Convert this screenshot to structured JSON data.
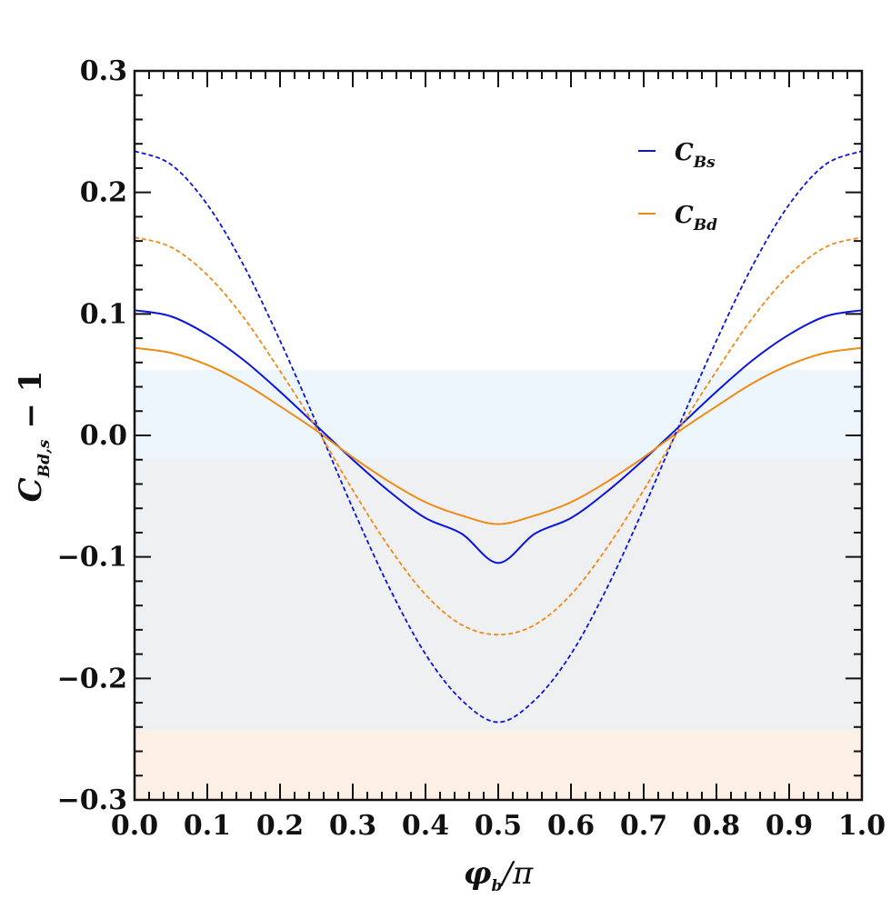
{
  "chart_data": {
    "type": "line",
    "xlabel": "φb/π",
    "ylabel": "CBd,s − 1",
    "xlim": [
      0.0,
      1.0
    ],
    "ylim": [
      -0.3,
      0.3
    ],
    "x_ticks": [
      "0.0",
      "0.1",
      "0.2",
      "0.3",
      "0.4",
      "0.5",
      "0.6",
      "0.7",
      "0.8",
      "0.9",
      "1.0"
    ],
    "y_ticks": [
      "0.3",
      "0.2",
      "0.1",
      "0.0",
      "−0.1",
      "−0.2",
      "−0.3"
    ],
    "y_tick_values": [
      0.3,
      0.2,
      0.1,
      0.0,
      -0.1,
      -0.2,
      -0.3
    ],
    "bands": [
      {
        "y0": -0.019,
        "y1": 0.054,
        "color": "#eef6fd"
      },
      {
        "y0": -0.243,
        "y1": -0.019,
        "color": "#eff0f2"
      },
      {
        "y0": -0.3,
        "y1": -0.243,
        "color": "#fdf0e5"
      }
    ],
    "x": [
      0.0,
      0.05,
      0.1,
      0.15,
      0.2,
      0.25,
      0.3,
      0.35,
      0.4,
      0.45,
      0.5,
      0.55,
      0.6,
      0.65,
      0.7,
      0.75,
      0.8,
      0.85,
      0.9,
      0.95,
      1.0
    ],
    "series": [
      {
        "name": "CBs",
        "style": "solid",
        "color": "#0a14e0",
        "values": [
          0.103,
          0.098,
          0.083,
          0.062,
          0.036,
          0.008,
          -0.02,
          -0.046,
          -0.068,
          -0.081,
          -0.105,
          -0.081,
          -0.068,
          -0.046,
          -0.02,
          0.008,
          0.036,
          0.062,
          0.083,
          0.098,
          0.103
        ]
      },
      {
        "name": "CBd",
        "style": "solid",
        "color": "#f08a12",
        "values": [
          0.072,
          0.068,
          0.058,
          0.043,
          0.024,
          0.004,
          -0.018,
          -0.038,
          -0.055,
          -0.066,
          -0.073,
          -0.066,
          -0.055,
          -0.038,
          -0.018,
          0.004,
          0.024,
          0.043,
          0.058,
          0.068,
          0.072
        ]
      },
      {
        "name": "",
        "style": "dashed",
        "color": "#0a14e0",
        "values": [
          0.234,
          0.223,
          0.19,
          0.14,
          0.078,
          0.01,
          -0.06,
          -0.125,
          -0.18,
          -0.218,
          -0.236,
          -0.218,
          -0.18,
          -0.125,
          -0.06,
          0.01,
          0.078,
          0.14,
          0.19,
          0.223,
          0.234
        ]
      },
      {
        "name": "",
        "style": "dashed",
        "color": "#f08a12",
        "values": [
          0.163,
          0.155,
          0.132,
          0.097,
          0.053,
          0.006,
          -0.045,
          -0.092,
          -0.131,
          -0.156,
          -0.164,
          -0.156,
          -0.131,
          -0.092,
          -0.045,
          0.006,
          0.053,
          0.097,
          0.132,
          0.155,
          0.163
        ]
      }
    ],
    "legend": {
      "placement": "top-right",
      "entries": [
        {
          "base": "C",
          "sub": "Bs",
          "color": "#0a14e0"
        },
        {
          "base": "C",
          "sub": "Bd",
          "color": "#f08a12"
        }
      ]
    }
  },
  "labels": {
    "xlabel_main": "φ",
    "xlabel_sub": "b",
    "xlabel_tail": "/π",
    "ylabel_main": "C",
    "ylabel_sub": "Bd,s",
    "ylabel_tail": " − 1"
  }
}
